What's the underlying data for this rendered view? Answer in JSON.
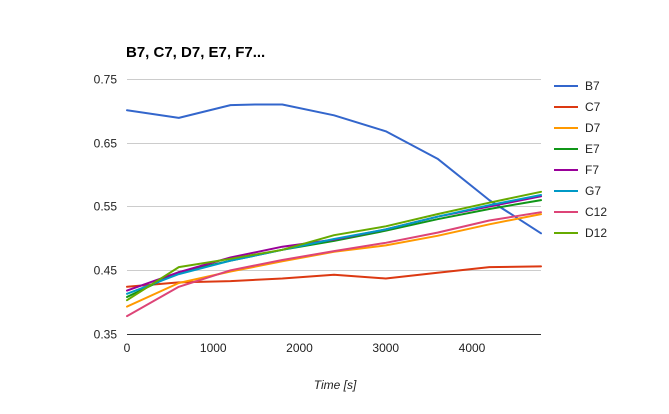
{
  "chart_data": {
    "type": "line",
    "title": "B7, C7, D7, E7, F7...",
    "xlabel": "Time [s]",
    "ylabel": "",
    "xlim": [
      0,
      4800
    ],
    "ylim": [
      0.35,
      0.75
    ],
    "x_ticks": [
      "0",
      "1000",
      "2000",
      "3000",
      "4000"
    ],
    "x_tick_values": [
      0,
      1000,
      2000,
      3000,
      4000
    ],
    "y_ticks": [
      "0.35",
      "0.45",
      "0.55",
      "0.65",
      "0.75"
    ],
    "y_tick_values": [
      0.35,
      0.45,
      0.55,
      0.65,
      0.75
    ],
    "grid": "horizontal",
    "legend_position": "right",
    "series": [
      {
        "name": "B7",
        "color": "#3366cc",
        "x": [
          0,
          600,
          1200,
          1500,
          1800,
          2400,
          3000,
          3600,
          4200,
          4800
        ],
        "values": [
          0.701,
          0.689,
          0.709,
          0.71,
          0.71,
          0.693,
          0.668,
          0.625,
          0.56,
          0.508
        ]
      },
      {
        "name": "C7",
        "color": "#dc3912",
        "x": [
          0,
          600,
          1200,
          1800,
          2400,
          3000,
          3600,
          4200,
          4800
        ],
        "values": [
          0.424,
          0.431,
          0.433,
          0.437,
          0.443,
          0.437,
          0.446,
          0.455,
          0.456
        ]
      },
      {
        "name": "D7",
        "color": "#ff9900",
        "x": [
          0,
          600,
          1200,
          1800,
          2400,
          3000,
          3600,
          4200,
          4800
        ],
        "values": [
          0.393,
          0.43,
          0.448,
          0.464,
          0.479,
          0.489,
          0.504,
          0.522,
          0.538
        ]
      },
      {
        "name": "E7",
        "color": "#109618",
        "x": [
          0,
          600,
          1200,
          1800,
          2400,
          3000,
          3600,
          4200,
          4800
        ],
        "values": [
          0.408,
          0.447,
          0.465,
          0.482,
          0.496,
          0.512,
          0.53,
          0.546,
          0.56
        ]
      },
      {
        "name": "F7",
        "color": "#990099",
        "x": [
          0,
          600,
          1200,
          1800,
          2400,
          3000,
          3600,
          4200,
          4800
        ],
        "values": [
          0.418,
          0.447,
          0.47,
          0.487,
          0.498,
          0.514,
          0.534,
          0.55,
          0.566
        ]
      },
      {
        "name": "G7",
        "color": "#0099c6",
        "x": [
          0,
          600,
          1200,
          1800,
          2400,
          3000,
          3600,
          4200,
          4800
        ],
        "values": [
          0.413,
          0.444,
          0.465,
          0.482,
          0.499,
          0.514,
          0.534,
          0.552,
          0.568
        ]
      },
      {
        "name": "C12",
        "color": "#dd4477",
        "x": [
          0,
          600,
          1200,
          1800,
          2400,
          3000,
          3600,
          4200,
          4800
        ],
        "values": [
          0.378,
          0.424,
          0.45,
          0.466,
          0.48,
          0.493,
          0.509,
          0.528,
          0.541
        ]
      },
      {
        "name": "D12",
        "color": "#66aa00",
        "x": [
          0,
          600,
          1200,
          1800,
          2400,
          3000,
          3600,
          4200,
          4800
        ],
        "values": [
          0.403,
          0.455,
          0.468,
          0.482,
          0.505,
          0.519,
          0.538,
          0.556,
          0.573
        ]
      }
    ]
  }
}
